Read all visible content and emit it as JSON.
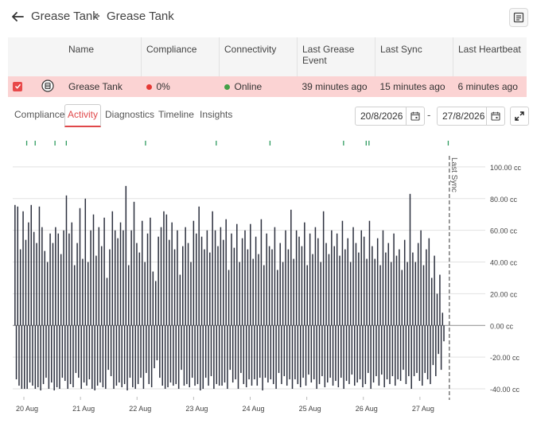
{
  "breadcrumb": {
    "parent": "Grease Tank",
    "current": "Grease Tank",
    "separator": ">"
  },
  "table": {
    "columns": [
      "Name",
      "Compliance",
      "Connectivity",
      "Last Grease Event",
      "Last Sync",
      "Last Heartbeat"
    ],
    "row": {
      "name": "Grease Tank",
      "compliance": "0%",
      "connectivity": "Online",
      "last_grease_event": "39 minutes ago",
      "last_sync": "15 minutes ago",
      "last_heartbeat": "6 minutes ago"
    }
  },
  "tabs": [
    "Compliance",
    "Activity",
    "Diagnostics",
    "Timeline",
    "Insights"
  ],
  "active_tab": "Activity",
  "date_range": {
    "from": "20/8/2026",
    "to": "27/8/2026",
    "separator": "-"
  },
  "colors": {
    "accent": "#e0484a",
    "compliance_dot": "#e53935",
    "online_dot": "#43a047",
    "row_highlight": "#fbd3d3",
    "event_marker": "#2e9b5f",
    "bar": "#2b2f3d"
  },
  "chart_data": {
    "type": "bar",
    "annotation": "Last Sync",
    "y_ticks": [
      "100.00 cc",
      "80.00 cc",
      "60.00 cc",
      "40.00 cc",
      "20.00 cc",
      "0.00 cc",
      "-20.00 cc",
      "-40.00 cc"
    ],
    "ylim": [
      -45,
      110
    ],
    "x_ticks": [
      "20 Aug",
      "21 Aug",
      "22 Aug",
      "23 Aug",
      "24 Aug",
      "25 Aug",
      "26 Aug",
      "27 Aug"
    ],
    "xlim": [
      0,
      7.55
    ],
    "event_markers": [
      0.05,
      0.2,
      0.55,
      0.75,
      2.15,
      3.4,
      4.35,
      5.65,
      6.05,
      6.1,
      7.5
    ],
    "last_sync": 7.52,
    "values": [
      76,
      -34,
      75,
      -38,
      48,
      -40,
      72,
      -40,
      54,
      -40,
      65,
      -36,
      76,
      -38,
      59,
      -40,
      52,
      -39,
      75,
      -41,
      62,
      -37,
      47,
      -33,
      40,
      -40,
      58,
      -36,
      52,
      -41,
      62,
      -39,
      58,
      -40,
      45,
      -33,
      60,
      -35,
      82,
      -40,
      58,
      -37,
      65,
      -39,
      38,
      -30,
      52,
      -33,
      74,
      -40,
      42,
      -36,
      80,
      -38,
      40,
      -34,
      60,
      -40,
      70,
      -41,
      44,
      -38,
      62,
      -36,
      50,
      -39,
      68,
      -40,
      30,
      -28,
      48,
      -32,
      72,
      -40,
      60,
      -38,
      55,
      -36,
      65,
      -39,
      60,
      -37,
      88,
      -41,
      38,
      -33,
      60,
      -39,
      78,
      -40,
      52,
      -37,
      46,
      -33,
      66,
      -40,
      40,
      -30,
      58,
      -37,
      68,
      -39,
      34,
      -27,
      28,
      -22,
      56,
      -33,
      62,
      -38,
      72,
      -40,
      70,
      -39,
      54,
      -36,
      65,
      -38,
      48,
      -37,
      60,
      -40,
      32,
      -28,
      50,
      -38,
      62,
      -37,
      52,
      -39,
      40,
      -33,
      66,
      -38,
      58,
      -37,
      75,
      -41,
      56,
      -40,
      48,
      -33,
      60,
      -38,
      46,
      -32,
      72,
      -40,
      60,
      -37,
      50,
      -38,
      62,
      -38,
      54,
      -36,
      67,
      -40,
      35,
      -28,
      58,
      -36,
      49,
      -34,
      64,
      -40,
      40,
      -30,
      55,
      -37,
      60,
      -39,
      48,
      -34,
      64,
      -38,
      42,
      -34,
      56,
      -38,
      45,
      -33,
      67,
      -41,
      38,
      -33,
      58,
      -36,
      50,
      -34,
      48,
      -37,
      62,
      -40,
      35,
      -30,
      52,
      -37,
      40,
      -32,
      60,
      -38,
      48,
      -34,
      73,
      -40,
      42,
      -34,
      60,
      -37,
      56,
      -39,
      50,
      -33,
      65,
      -38,
      38,
      -31,
      58,
      -36,
      45,
      -34,
      62,
      -40,
      55,
      -37,
      40,
      -32,
      72,
      -39,
      52,
      -36,
      45,
      -33,
      60,
      -38,
      50,
      -35,
      58,
      -39,
      44,
      -33,
      66,
      -40,
      48,
      -35,
      55,
      -37,
      40,
      -31,
      62,
      -38,
      52,
      -36,
      46,
      -34,
      60,
      -39,
      56,
      -37,
      42,
      -30,
      66,
      -40,
      50,
      -36,
      42,
      -32,
      55,
      -38,
      38,
      -31,
      60,
      -39,
      46,
      -34,
      52,
      -37,
      40,
      -32,
      58,
      -38,
      44,
      -34,
      48,
      -35,
      35,
      -28,
      54,
      -37,
      40,
      -32,
      83,
      -40,
      46,
      -32,
      40,
      -30,
      52,
      -35,
      60,
      -38,
      38,
      -30,
      48,
      -34,
      55,
      -37,
      30,
      -25,
      44,
      -32,
      20,
      -18,
      32,
      -28,
      8,
      -10
    ]
  }
}
